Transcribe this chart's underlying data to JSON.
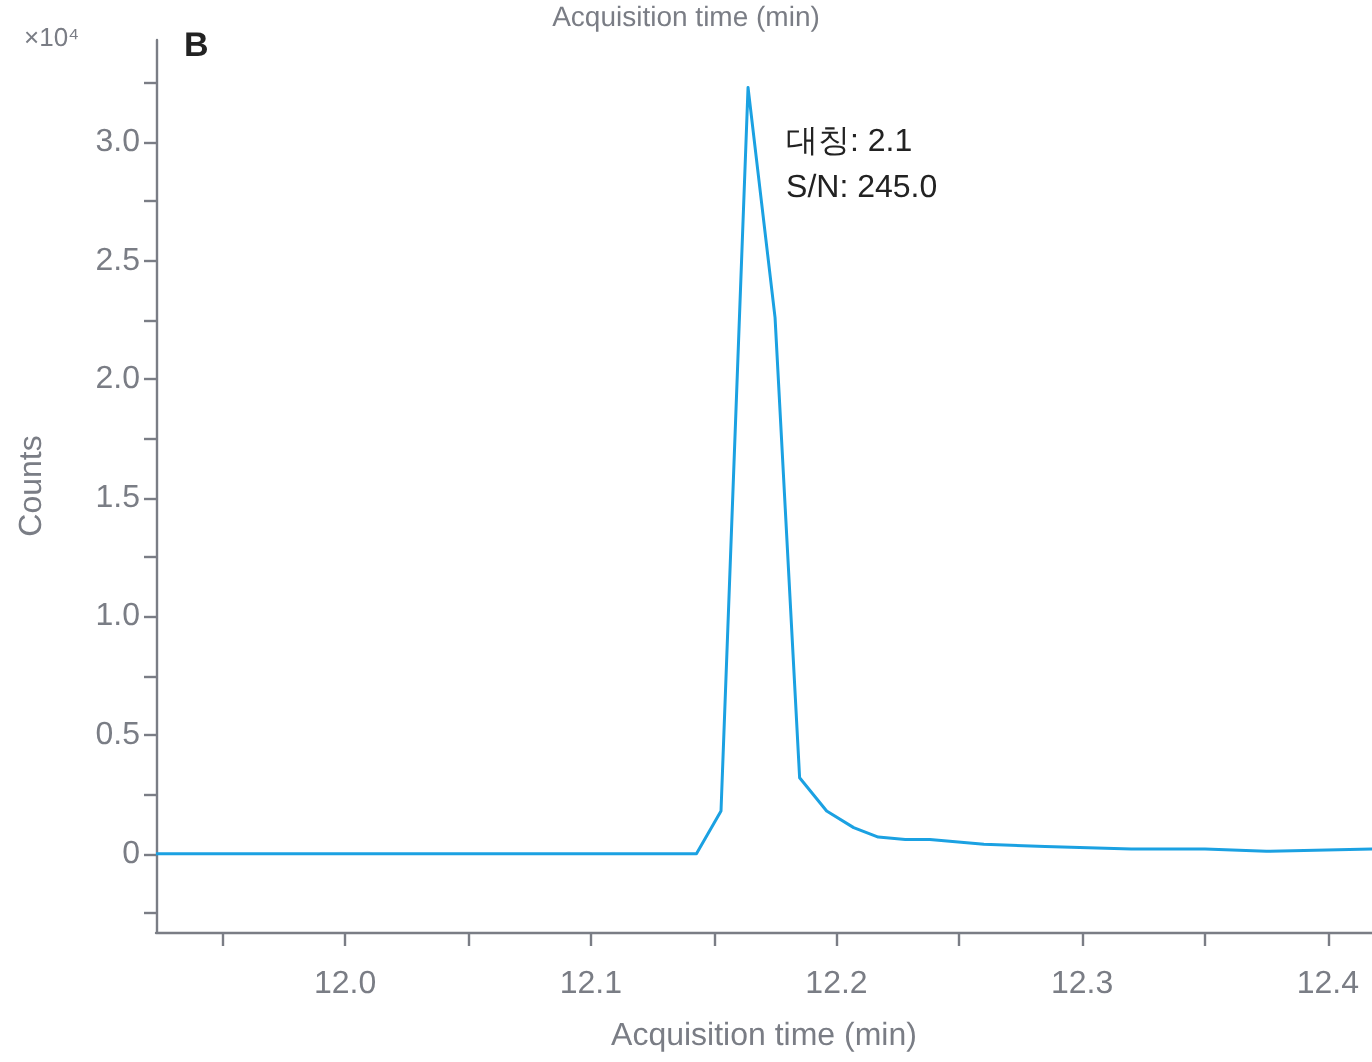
{
  "chart_data": {
    "type": "line",
    "title": "B",
    "xlabel": "Acquisition time (min)",
    "ylabel": "Counts",
    "annotations": [
      "Acquisition time (min)",
      "×10⁴",
      {
        "text": "대칭: 2.1\nS/N: 245.0",
        "x": 12.164,
        "y": 3.23
      }
    ],
    "x": [
      11.923,
      11.98,
      12.04,
      12.1,
      12.13,
      12.143,
      12.153,
      12.164,
      12.175,
      12.185,
      12.196,
      12.207,
      12.217,
      12.228,
      12.238,
      12.26,
      12.285,
      12.32,
      12.35,
      12.375,
      12.418
    ],
    "series": [
      {
        "color": "#1ba1e2",
        "values": [
          0.0,
          0.0,
          0.0,
          0.0,
          0.0,
          0.0,
          0.18,
          3.23,
          2.26,
          0.32,
          0.18,
          0.11,
          0.07,
          0.06,
          0.06,
          0.04,
          0.03,
          0.02,
          0.02,
          0.01,
          0.02
        ]
      }
    ],
    "xlim": [
      11.923,
      12.418
    ],
    "xticks": [
      {
        "value": 11.95,
        "label": null
      },
      {
        "value": 12,
        "label": "12.0"
      },
      {
        "value": 12.05,
        "label": null
      },
      12.1,
      {
        "value": 12.15,
        "label": null
      },
      12.2,
      {
        "value": 12.25,
        "label": null
      },
      12.3,
      {
        "value": 12.35,
        "label": null
      },
      12.4
    ],
    "ylim": [
      -0.33,
      3.43
    ],
    "yticks": [
      {
        "value": -0.25,
        "label": null
      },
      0,
      {
        "value": 0.25,
        "label": null
      },
      0.5,
      {
        "value": 0.75,
        "label": null
      },
      {
        "value": 1,
        "label": "1.0"
      },
      {
        "value": 1.25,
        "label": null
      },
      1.5,
      {
        "value": 1.75,
        "label": null
      },
      {
        "value": 2,
        "label": "2.0"
      },
      {
        "value": 2.25,
        "label": null
      },
      2.5,
      {
        "value": 2.75,
        "label": null
      },
      {
        "value": 3,
        "label": "3.0"
      },
      {
        "value": 3.25,
        "label": null
      }
    ],
    "grid": false,
    "marker": "none",
    "line_style": "solid"
  }
}
